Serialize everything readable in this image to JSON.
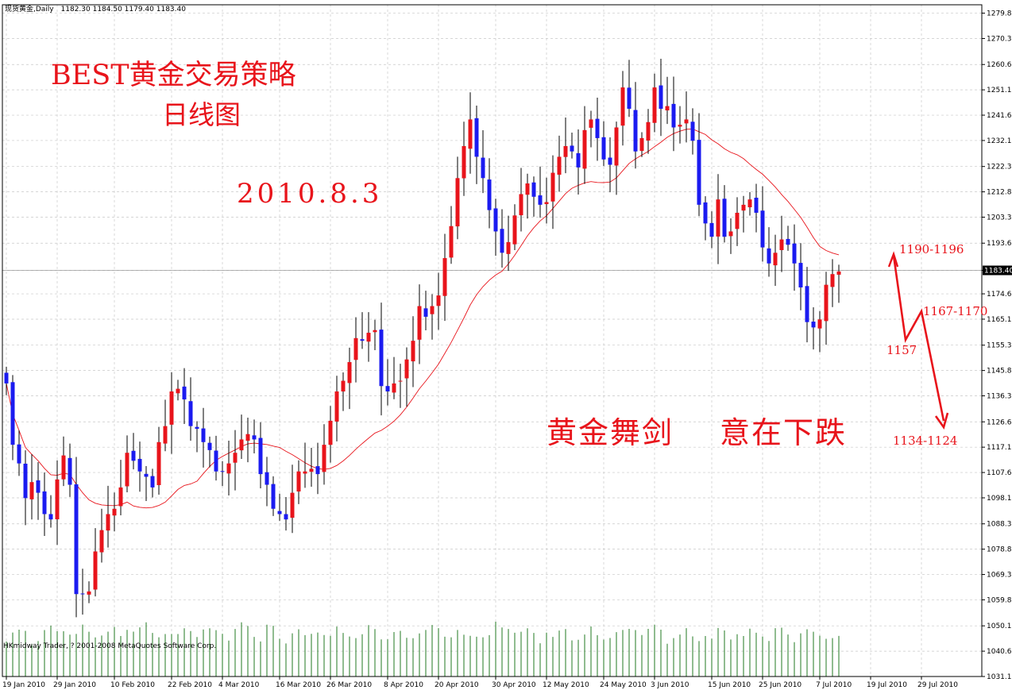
{
  "header": {
    "symbol": "现货黄金,Daily",
    "ohlc": "1182.30 1184.50 1179.40 1183.40"
  },
  "footer": {
    "copyright": "HKmidway Trader, ? 2001-2008 MetaQuotes Software Corp."
  },
  "annotations": {
    "title_line1": "BEST黄金交易策略",
    "title_line2": "日线图",
    "date": "2010.8.3",
    "slogan_part1": "黄金舞剑",
    "slogan_part2": "意在下跌",
    "target_upper": "1190-1196",
    "target_mid": "1167-1170",
    "target_low": "1157",
    "target_final": "1134-1124"
  },
  "colors": {
    "up": "#e8141b",
    "down": "#1b1bf0",
    "ma": "#e8141b",
    "volume": "#217a21",
    "grid": "#c8c8c8",
    "annotation": "#e8141b"
  },
  "chart_data": {
    "type": "candlestick",
    "title": "",
    "xlabel": "",
    "ylabel": "",
    "ylim": [
      1031.1,
      1283.0
    ],
    "grid": true,
    "price_marker": "1183.40",
    "y_ticks": [
      "1279.85",
      "1270.35",
      "1260.60",
      "1251.10",
      "1241.60",
      "1232.10",
      "1222.35",
      "1212.85",
      "1203.35",
      "1193.60",
      "1183.40",
      "1174.60",
      "1165.10",
      "1155.35",
      "1145.85",
      "1136.35",
      "1126.60",
      "1117.10",
      "1107.60",
      "1098.10",
      "1088.35",
      "1078.85",
      "1069.35",
      "1059.85",
      "1050.10",
      "1040.60",
      "1031.10"
    ],
    "x_ticks": [
      {
        "label": "19 Jan 2010",
        "index": 0
      },
      {
        "label": "29 Jan 2010",
        "index": 8
      },
      {
        "label": "10 Feb 2010",
        "index": 17
      },
      {
        "label": "22 Feb 2010",
        "index": 26
      },
      {
        "label": "4 Mar 2010",
        "index": 34
      },
      {
        "label": "16 Mar 2010",
        "index": 43
      },
      {
        "label": "26 Mar 2010",
        "index": 51
      },
      {
        "label": "8 Apr 2010",
        "index": 60
      },
      {
        "label": "20 Apr 2010",
        "index": 68
      },
      {
        "label": "30 Apr 2010",
        "index": 77
      },
      {
        "label": "12 May 2010",
        "index": 85
      },
      {
        "label": "24 May 2010",
        "index": 94
      },
      {
        "label": "3 Jun 2010",
        "index": 102
      },
      {
        "label": "15 Jun 2010",
        "index": 111
      },
      {
        "label": "25 Jun 2010",
        "index": 119
      },
      {
        "label": "7 Jul 2010",
        "index": 128
      },
      {
        "label": "19 Jul 2010",
        "index": 136
      },
      {
        "label": "29 Jul 2010",
        "index": 144
      }
    ],
    "close_path": [
      1141,
      1118,
      1111,
      1098,
      1104,
      1100,
      1092,
      1090,
      1105,
      1114,
      1103,
      1062,
      1062,
      1063,
      1078,
      1086,
      1092,
      1094,
      1102,
      1115,
      1112,
      1108,
      1106,
      1102,
      1119,
      1125,
      1138,
      1139,
      1135,
      1125,
      1124,
      1119,
      1116,
      1108,
      1108,
      1111,
      1115,
      1120,
      1122,
      1120,
      1107,
      1103,
      1094,
      1092,
      1090,
      1100,
      1108,
      1108,
      1109,
      1107,
      1118,
      1127,
      1138,
      1142,
      1149,
      1158,
      1157,
      1160,
      1161,
      1140,
      1138,
      1141,
      1142,
      1150,
      1157,
      1170,
      1166,
      1170,
      1174,
      1188,
      1200,
      1218,
      1230,
      1240,
      1226,
      1218,
      1206,
      1198,
      1190,
      1194,
      1204,
      1212,
      1216,
      1211,
      1208,
      1209,
      1220,
      1226,
      1230,
      1228,
      1222,
      1236,
      1240,
      1233,
      1225,
      1223,
      1237,
      1252,
      1244,
      1228,
      1233,
      1239,
      1252,
      1244,
      1245,
      1237,
      1238,
      1240,
      1232,
      1208,
      1201,
      1196,
      1210,
      1196,
      1198,
      1205,
      1208,
      1210,
      1205,
      1192,
      1186,
      1190,
      1195,
      1193,
      1186,
      1177,
      1164,
      1162,
      1165,
      1178,
      1182,
      1183
    ],
    "ma_period": 20,
    "volume_pattern": [
      0.62,
      0.76,
      0.82,
      0.66,
      0.55,
      0.6,
      0.7,
      0.73,
      0.68,
      0.62,
      0.58,
      0.66,
      0.75,
      0.7,
      0.64,
      0.6,
      0.7,
      0.8,
      0.72,
      0.66
    ]
  }
}
